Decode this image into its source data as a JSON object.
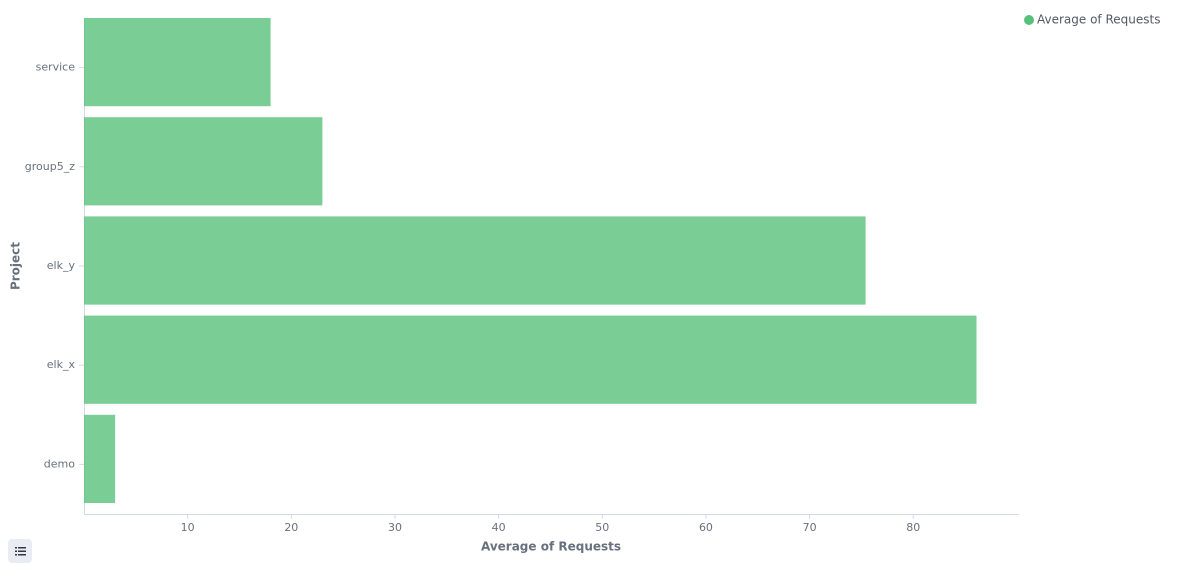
{
  "chart_data": {
    "type": "hbar",
    "x_label": "Average of Requests",
    "y_label": "Project",
    "categories": [
      "service",
      "group5_z",
      "elk_y",
      "elk_x",
      "demo"
    ],
    "series": [
      {
        "name": "Average of Requests",
        "color": "#57c17b",
        "values": [
          18.0,
          23.0,
          75.4,
          86.1,
          3.0
        ]
      }
    ],
    "xlim": [
      0,
      90.2
    ],
    "xticks": [
      10,
      20,
      30,
      40,
      50,
      60,
      70,
      80
    ],
    "legend": "top-right"
  }
}
